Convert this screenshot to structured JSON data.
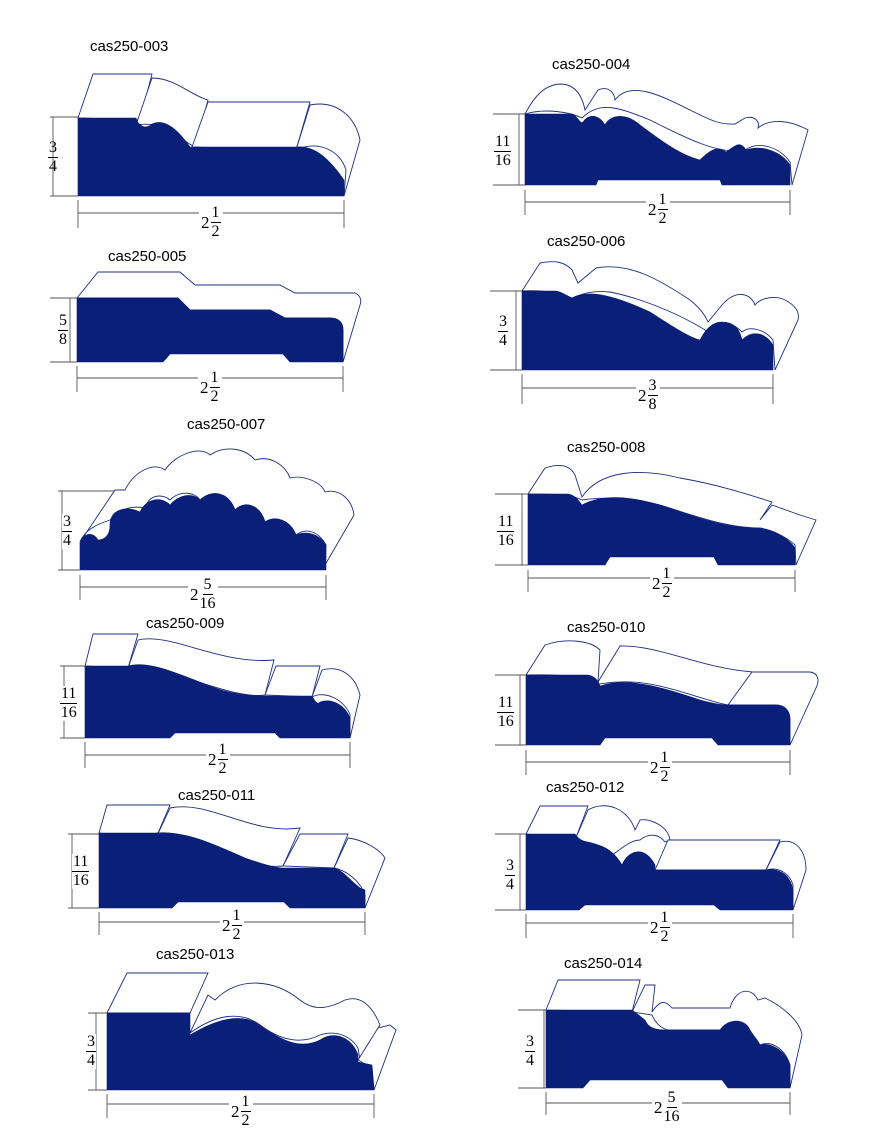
{
  "profiles": [
    {
      "id": "cas250-003",
      "height": {
        "num": "3",
        "den": "4"
      },
      "width": {
        "whole": "2",
        "num": "1",
        "den": "2"
      }
    },
    {
      "id": "cas250-004",
      "height": {
        "num": "11",
        "den": "16"
      },
      "width": {
        "whole": "2",
        "num": "1",
        "den": "2"
      }
    },
    {
      "id": "cas250-005",
      "height": {
        "num": "5",
        "den": "8"
      },
      "width": {
        "whole": "2",
        "num": "1",
        "den": "2"
      }
    },
    {
      "id": "cas250-006",
      "height": {
        "num": "3",
        "den": "4"
      },
      "width": {
        "whole": "2",
        "num": "3",
        "den": "8"
      }
    },
    {
      "id": "cas250-007",
      "height": {
        "num": "3",
        "den": "4"
      },
      "width": {
        "whole": "2",
        "num": "5",
        "den": "16"
      }
    },
    {
      "id": "cas250-008",
      "height": {
        "num": "11",
        "den": "16"
      },
      "width": {
        "whole": "2",
        "num": "1",
        "den": "2"
      }
    },
    {
      "id": "cas250-009",
      "height": {
        "num": "11",
        "den": "16"
      },
      "width": {
        "whole": "2",
        "num": "1",
        "den": "2"
      }
    },
    {
      "id": "cas250-010",
      "height": {
        "num": "11",
        "den": "16"
      },
      "width": {
        "whole": "2",
        "num": "1",
        "den": "2"
      }
    },
    {
      "id": "cas250-011",
      "height": {
        "num": "11",
        "den": "16"
      },
      "width": {
        "whole": "2",
        "num": "1",
        "den": "2"
      }
    },
    {
      "id": "cas250-012",
      "height": {
        "num": "3",
        "den": "4"
      },
      "width": {
        "whole": "2",
        "num": "1",
        "den": "2"
      }
    },
    {
      "id": "cas250-013",
      "height": {
        "num": "3",
        "den": "4"
      },
      "width": {
        "whole": "2",
        "num": "1",
        "den": "2"
      }
    },
    {
      "id": "cas250-014",
      "height": {
        "num": "3",
        "den": "4"
      },
      "width": {
        "whole": "2",
        "num": "5",
        "den": "16"
      }
    }
  ],
  "colors": {
    "profile_fill": "#0a1f78",
    "outline": "#1d2f80",
    "dimension_line": "#555555"
  }
}
